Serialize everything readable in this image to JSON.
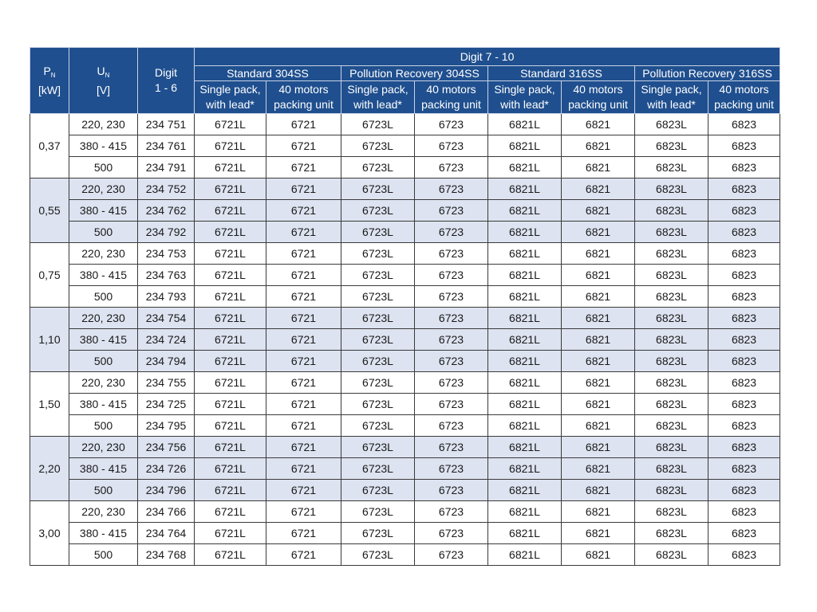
{
  "header": {
    "power": {
      "symbol": "P",
      "subscript": "N",
      "unit": "[kW]"
    },
    "voltage": {
      "symbol": "U",
      "subscript": "N",
      "unit": "[V]"
    },
    "digit_1_6": {
      "label": "Digit",
      "range": "1 - 6"
    },
    "digit_7_10": "Digit  7 - 10",
    "groups": [
      {
        "name": "Standard  304SS",
        "columns": [
          [
            "Single pack,",
            "with lead*"
          ],
          [
            "40 motors",
            "packing unit"
          ]
        ]
      },
      {
        "name": "Pollution Recovery 304SS",
        "columns": [
          [
            "Single pack,",
            "with lead*"
          ],
          [
            "40 motors",
            "packing unit"
          ]
        ]
      },
      {
        "name": "Standard  316SS",
        "columns": [
          [
            "Single pack,",
            "with lead*"
          ],
          [
            "40 motors",
            "packing unit"
          ]
        ]
      },
      {
        "name": "Pollution Recovery 316SS",
        "columns": [
          [
            "Single pack,",
            "with lead*"
          ],
          [
            "40 motors",
            "packing unit"
          ]
        ]
      }
    ]
  },
  "body": [
    {
      "power": "0,37",
      "rows": [
        [
          "220, 230",
          "234 751",
          "6721L",
          "6721",
          "6723L",
          "6723",
          "6821L",
          "6821",
          "6823L",
          "6823"
        ],
        [
          "380 - 415",
          "234 761",
          "6721L",
          "6721",
          "6723L",
          "6723",
          "6821L",
          "6821",
          "6823L",
          "6823"
        ],
        [
          "500",
          "234 791",
          "6721L",
          "6721",
          "6723L",
          "6723",
          "6821L",
          "6821",
          "6823L",
          "6823"
        ]
      ]
    },
    {
      "power": "0,55",
      "rows": [
        [
          "220, 230",
          "234 752",
          "6721L",
          "6721",
          "6723L",
          "6723",
          "6821L",
          "6821",
          "6823L",
          "6823"
        ],
        [
          "380 - 415",
          "234 762",
          "6721L",
          "6721",
          "6723L",
          "6723",
          "6821L",
          "6821",
          "6823L",
          "6823"
        ],
        [
          "500",
          "234 792",
          "6721L",
          "6721",
          "6723L",
          "6723",
          "6821L",
          "6821",
          "6823L",
          "6823"
        ]
      ]
    },
    {
      "power": "0,75",
      "rows": [
        [
          "220, 230",
          "234 753",
          "6721L",
          "6721",
          "6723L",
          "6723",
          "6821L",
          "6821",
          "6823L",
          "6823"
        ],
        [
          "380 - 415",
          "234 763",
          "6721L",
          "6721",
          "6723L",
          "6723",
          "6821L",
          "6821",
          "6823L",
          "6823"
        ],
        [
          "500",
          "234 793",
          "6721L",
          "6721",
          "6723L",
          "6723",
          "6821L",
          "6821",
          "6823L",
          "6823"
        ]
      ]
    },
    {
      "power": "1,10",
      "rows": [
        [
          "220, 230",
          "234 754",
          "6721L",
          "6721",
          "6723L",
          "6723",
          "6821L",
          "6821",
          "6823L",
          "6823"
        ],
        [
          "380 - 415",
          "234 724",
          "6721L",
          "6721",
          "6723L",
          "6723",
          "6821L",
          "6821",
          "6823L",
          "6823"
        ],
        [
          "500",
          "234 794",
          "6721L",
          "6721",
          "6723L",
          "6723",
          "6821L",
          "6821",
          "6823L",
          "6823"
        ]
      ]
    },
    {
      "power": "1,50",
      "rows": [
        [
          "220, 230",
          "234 755",
          "6721L",
          "6721",
          "6723L",
          "6723",
          "6821L",
          "6821",
          "6823L",
          "6823"
        ],
        [
          "380 - 415",
          "234 725",
          "6721L",
          "6721",
          "6723L",
          "6723",
          "6821L",
          "6821",
          "6823L",
          "6823"
        ],
        [
          "500",
          "234 795",
          "6721L",
          "6721",
          "6723L",
          "6723",
          "6821L",
          "6821",
          "6823L",
          "6823"
        ]
      ]
    },
    {
      "power": "2,20",
      "rows": [
        [
          "220, 230",
          "234 756",
          "6721L",
          "6721",
          "6723L",
          "6723",
          "6821L",
          "6821",
          "6823L",
          "6823"
        ],
        [
          "380 - 415",
          "234 726",
          "6721L",
          "6721",
          "6723L",
          "6723",
          "6821L",
          "6821",
          "6823L",
          "6823"
        ],
        [
          "500",
          "234 796",
          "6721L",
          "6721",
          "6723L",
          "6723",
          "6821L",
          "6821",
          "6823L",
          "6823"
        ]
      ]
    },
    {
      "power": "3,00",
      "rows": [
        [
          "220, 230",
          "234 766",
          "6721L",
          "6721",
          "6723L",
          "6723",
          "6821L",
          "6821",
          "6823L",
          "6823"
        ],
        [
          "380 - 415",
          "234 764",
          "6721L",
          "6721",
          "6723L",
          "6723",
          "6821L",
          "6821",
          "6823L",
          "6823"
        ],
        [
          "500",
          "234 768",
          "6721L",
          "6721",
          "6723L",
          "6723",
          "6821L",
          "6821",
          "6823L",
          "6823"
        ]
      ]
    }
  ]
}
